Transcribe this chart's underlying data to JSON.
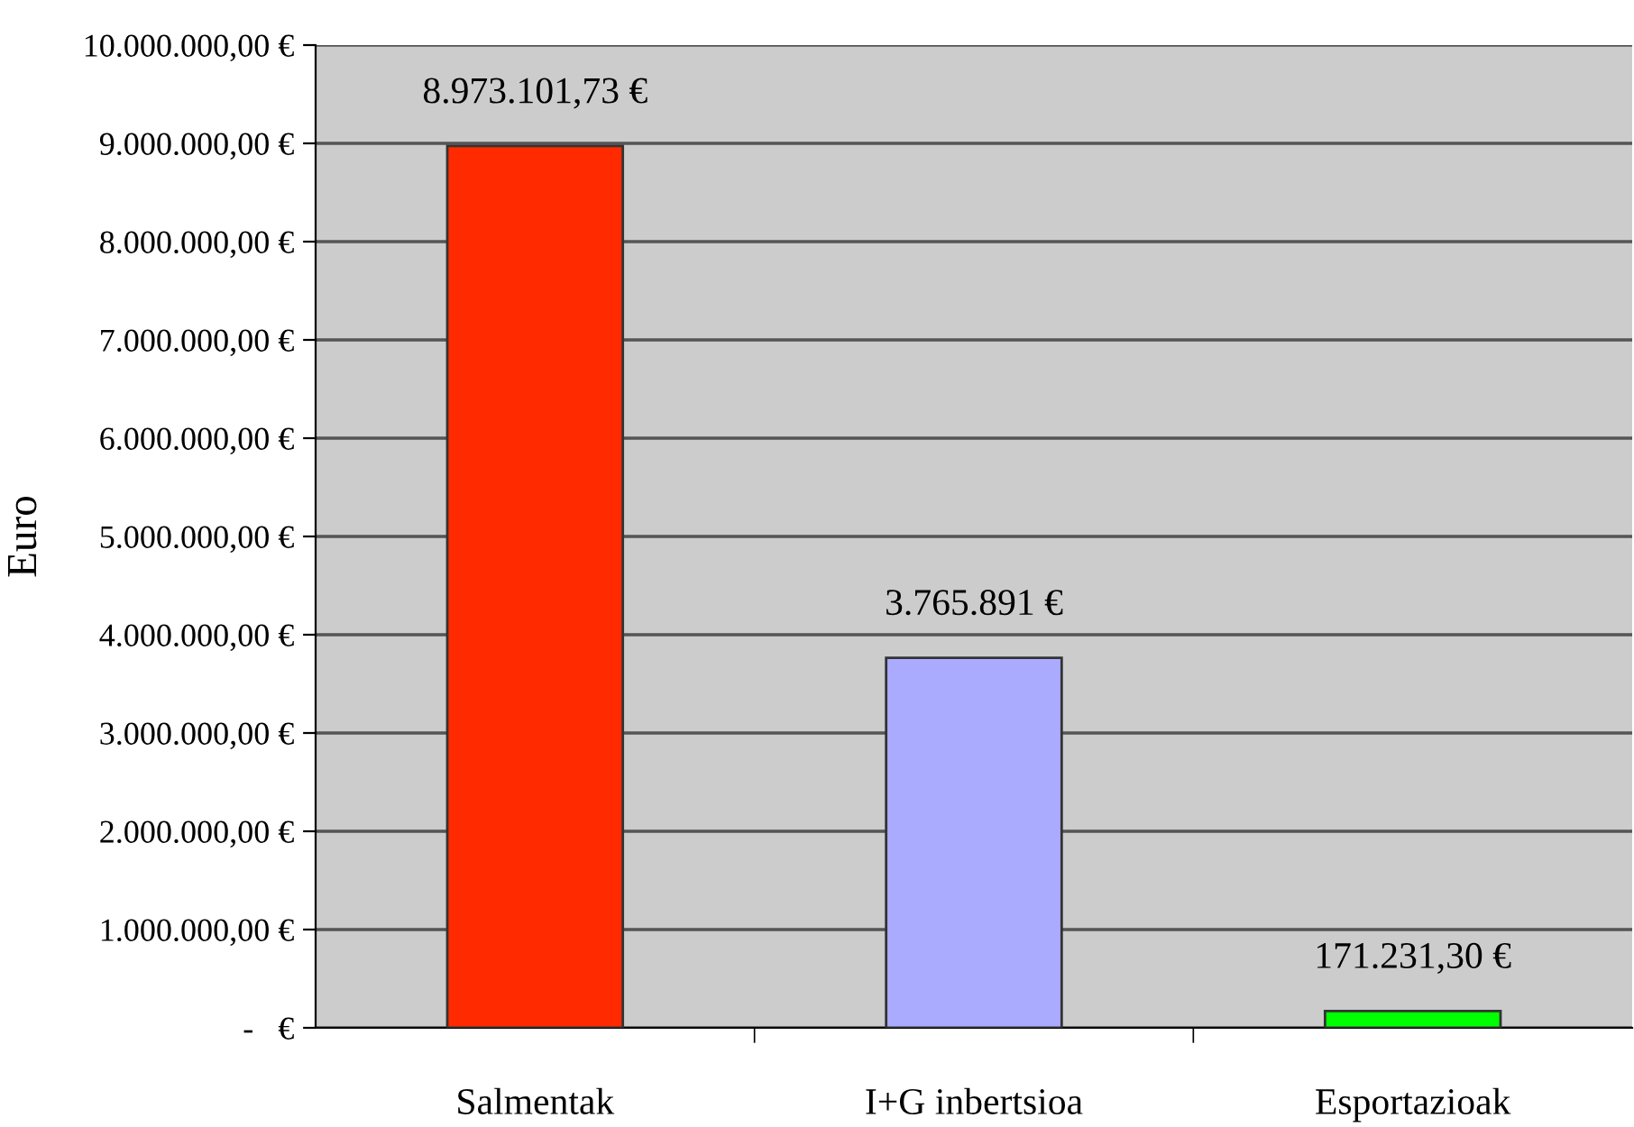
{
  "chart_data": {
    "type": "bar",
    "ylabel": "Euro",
    "categories": [
      "Salmentak",
      "I+G inbertsioa",
      "Esportazioak"
    ],
    "values": [
      8973101.73,
      3765891,
      171231.3
    ],
    "colors": [
      "#ff2a00",
      "#aaaaff",
      "#00ff00"
    ],
    "value_labels": [
      "8.973.101,73 €",
      "3.765.891 €",
      "171.231,30 €"
    ],
    "ylim": [
      0,
      10000000
    ],
    "yticks": [
      {
        "value": 0,
        "label": "-   €"
      },
      {
        "value": 1000000,
        "label": "1.000.000,00 €"
      },
      {
        "value": 2000000,
        "label": "2.000.000,00 €"
      },
      {
        "value": 3000000,
        "label": "3.000.000,00 €"
      },
      {
        "value": 4000000,
        "label": "4.000.000,00 €"
      },
      {
        "value": 5000000,
        "label": "5.000.000,00 €"
      },
      {
        "value": 6000000,
        "label": "6.000.000,00 €"
      },
      {
        "value": 7000000,
        "label": "7.000.000,00 €"
      },
      {
        "value": 8000000,
        "label": "8.000.000,00 €"
      },
      {
        "value": 9000000,
        "label": "9.000.000,00 €"
      },
      {
        "value": 10000000,
        "label": "10.000.000,00 €"
      }
    ],
    "grid": "y",
    "legend": false
  }
}
